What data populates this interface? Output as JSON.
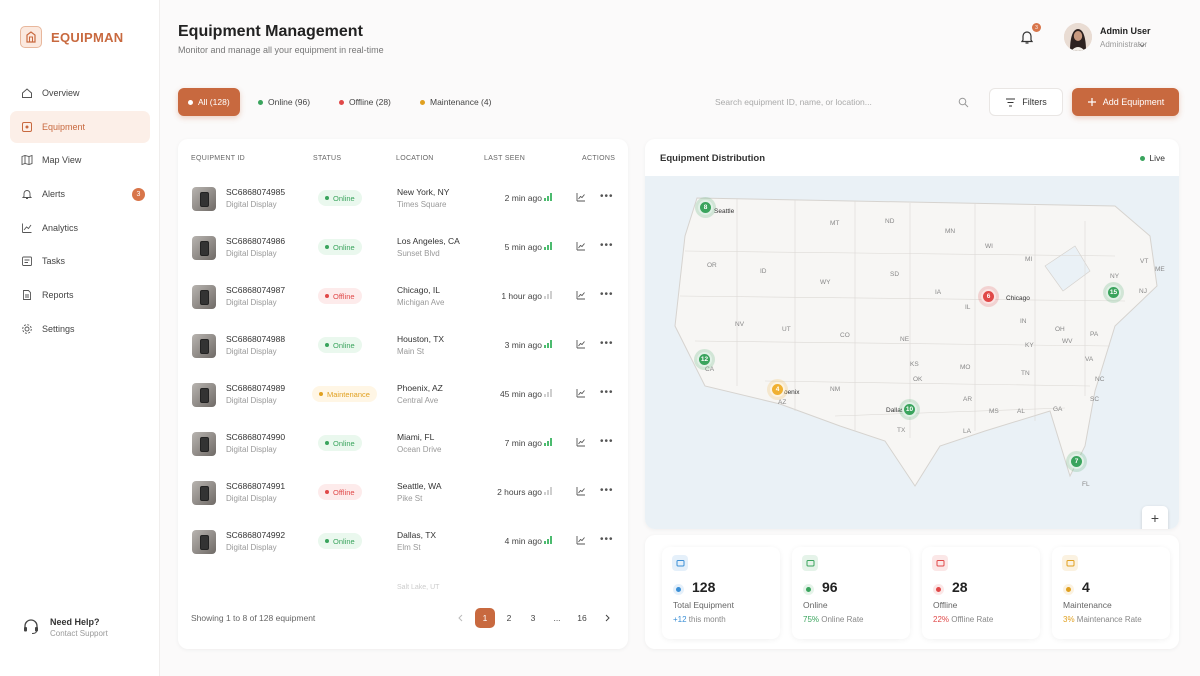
{
  "brand": {
    "name": "EQUIPMAN"
  },
  "nav": [
    {
      "label": "Overview",
      "icon": "home-icon"
    },
    {
      "label": "Equipment",
      "icon": "equipment-icon",
      "active": true
    },
    {
      "label": "Map View",
      "icon": "map-icon"
    },
    {
      "label": "Alerts",
      "icon": "bell-icon",
      "badge": "3"
    },
    {
      "label": "Analytics",
      "icon": "analytics-icon"
    },
    {
      "label": "Tasks",
      "icon": "tasks-icon"
    },
    {
      "label": "Reports",
      "icon": "reports-icon"
    },
    {
      "label": "Settings",
      "icon": "gear-icon"
    }
  ],
  "help": {
    "title": "Need Help?",
    "subtitle": "Contact Support"
  },
  "header": {
    "title": "Equipment Management",
    "subtitle": "Monitor and manage all your equipment in real-time",
    "notification_count": "3",
    "user_name": "Admin User",
    "user_role": "Administrator"
  },
  "filters": {
    "chips": [
      {
        "label": "All (128)",
        "active": true
      },
      {
        "label": "Online (96)",
        "color": "#3aa45d"
      },
      {
        "label": "Offline (28)",
        "color": "#e04848"
      },
      {
        "label": "Maintenance (4)",
        "color": "#e0a020"
      }
    ],
    "search_placeholder": "Search equipment ID, name, or location...",
    "filters_label": "Filters",
    "add_label": "Add Equipment"
  },
  "table": {
    "headers": [
      "EQUIPMENT ID",
      "STATUS",
      "LOCATION",
      "LAST SEEN",
      "ACTIONS"
    ],
    "rows": [
      {
        "id": "SC6868074985",
        "type": "Digital Display",
        "status": "Online",
        "location": "New York, NY",
        "sub": "Times Square",
        "last_seen": "2 min ago"
      },
      {
        "id": "SC6868074986",
        "type": "Digital Display",
        "status": "Online",
        "location": "Los Angeles, CA",
        "sub": "Sunset Blvd",
        "last_seen": "5 min ago"
      },
      {
        "id": "SC6868074987",
        "type": "Digital Display",
        "status": "Offline",
        "location": "Chicago, IL",
        "sub": "Michigan Ave",
        "last_seen": "1 hour ago"
      },
      {
        "id": "SC6868074988",
        "type": "Digital Display",
        "status": "Online",
        "location": "Houston, TX",
        "sub": "Main St",
        "last_seen": "3 min ago"
      },
      {
        "id": "SC6868074989",
        "type": "Digital Display",
        "status": "Maintenance",
        "location": "Phoenix, AZ",
        "sub": "Central Ave",
        "last_seen": "45 min ago"
      },
      {
        "id": "SC6868074990",
        "type": "Digital Display",
        "status": "Online",
        "location": "Miami, FL",
        "sub": "Ocean Drive",
        "last_seen": "7 min ago"
      },
      {
        "id": "SC6868074991",
        "type": "Digital Display",
        "status": "Offline",
        "location": "Seattle, WA",
        "sub": "Pike St",
        "last_seen": "2 hours ago"
      },
      {
        "id": "SC6868074992",
        "type": "Digital Display",
        "status": "Online",
        "location": "Dallas, TX",
        "sub": "Elm St",
        "last_seen": "4 min ago"
      }
    ],
    "ghost_row": "Salt Lake, UT",
    "showing": "Showing 1 to 8 of 128 equipment",
    "pages": [
      "1",
      "2",
      "3",
      "...",
      "16"
    ]
  },
  "map": {
    "title": "Equipment Distribution",
    "live_label": "Live",
    "state_labels": [
      "MT",
      "ND",
      "MN",
      "WI",
      "MI",
      "NY",
      "VT",
      "ME",
      "OR",
      "ID",
      "WY",
      "SD",
      "IA",
      "IL",
      "IN",
      "OH",
      "PA",
      "NV",
      "UT",
      "CO",
      "NE",
      "KS",
      "MO",
      "KY",
      "WV",
      "VA",
      "CA",
      "AZ",
      "NM",
      "OK",
      "AR",
      "TN",
      "NC",
      "TX",
      "LA",
      "MS",
      "AL",
      "GA",
      "SC",
      "FL",
      "NJ"
    ],
    "city_labels": [
      "Seattle",
      "Chicago",
      "Dallas",
      "Phoenix"
    ],
    "clusters": [
      {
        "count": "8",
        "status": "Online"
      },
      {
        "count": "6",
        "status": "Offline"
      },
      {
        "count": "15",
        "status": "Online"
      },
      {
        "count": "12",
        "status": "Online"
      },
      {
        "count": "4",
        "status": "Maintenance"
      },
      {
        "count": "10",
        "status": "Online"
      },
      {
        "count": "7",
        "status": "Online"
      }
    ],
    "zoom_in": "+",
    "zoom_out": "−"
  },
  "stats": [
    {
      "value": "128",
      "label": "Total Equipment",
      "foot_value": "+12",
      "foot_rest": " this month",
      "color": "#3b8fd6"
    },
    {
      "value": "96",
      "label": "Online",
      "foot_value": "75%",
      "foot_rest": " Online Rate",
      "color": "#3aa45d"
    },
    {
      "value": "28",
      "label": "Offline",
      "foot_value": "22%",
      "foot_rest": " Offline Rate",
      "color": "#e04848"
    },
    {
      "value": "4",
      "label": "Maintenance",
      "foot_value": "3%",
      "foot_rest": " Maintenance Rate",
      "color": "#e0a020"
    }
  ],
  "colors": {
    "accent": "#c8693f",
    "online": "#3aa45d",
    "offline": "#e04848",
    "maintenance": "#e0a020"
  }
}
